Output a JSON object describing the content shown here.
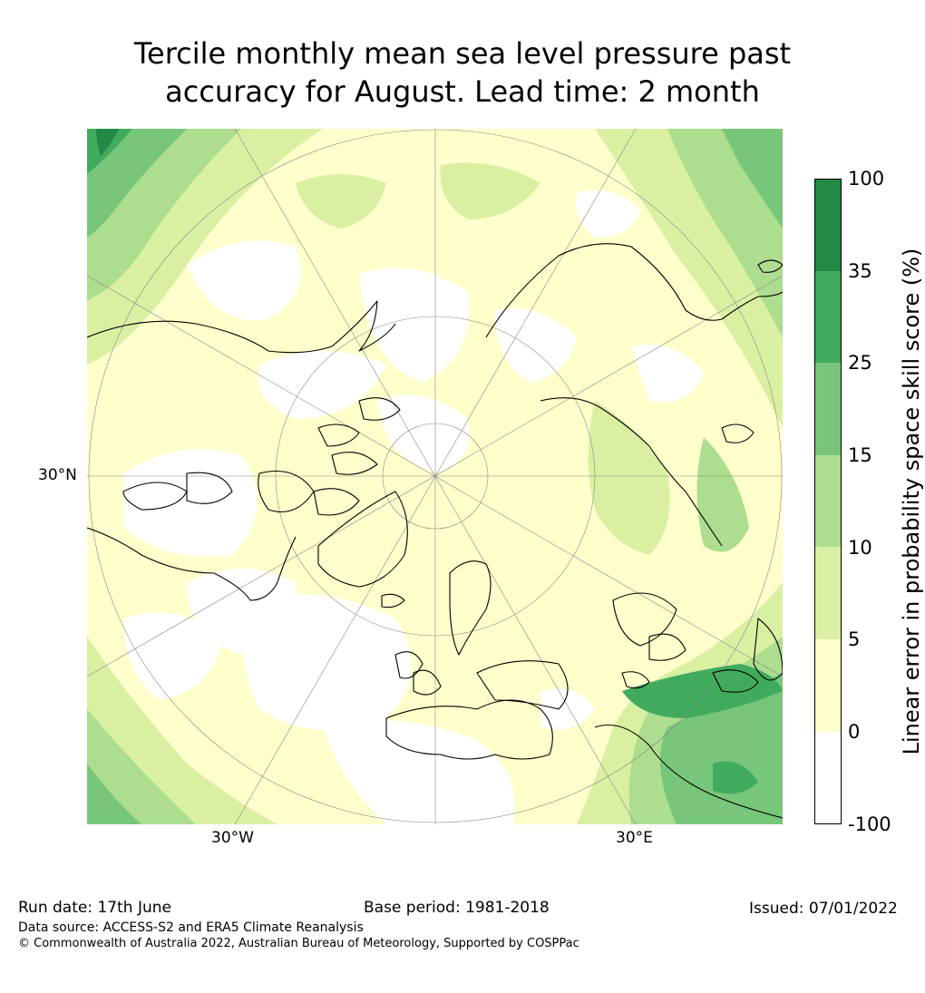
{
  "title": {
    "line1": "Tercile monthly mean sea level pressure past",
    "line2": "accuracy for August. Lead time: 2 month"
  },
  "map": {
    "projection": "north-polar-stereographic",
    "lat_label": "30°N",
    "lon_labels": [
      "30°W",
      "30°E"
    ],
    "land_outline_color": "#000000",
    "graticule_color": "#888888"
  },
  "colorbar": {
    "title": "Linear error in probability space skill score (%)",
    "ticks": [
      "100",
      "35",
      "25",
      "15",
      "10",
      "5",
      "0",
      "-100"
    ],
    "bins": [
      {
        "range": "35 to 100",
        "color": "#238a45"
      },
      {
        "range": "25 to 35",
        "color": "#41ab5d"
      },
      {
        "range": "15 to 25",
        "color": "#78c679"
      },
      {
        "range": "10 to 15",
        "color": "#addd8e"
      },
      {
        "range": "5 to 10",
        "color": "#d9f0a3"
      },
      {
        "range": "0 to 5",
        "color": "#ffffcc"
      },
      {
        "range": "-100 to 0",
        "color": "#ffffff"
      }
    ]
  },
  "footer": {
    "run_date": "Run date: 17th June",
    "base_period": "Base period: 1981-2018",
    "issued": "Issued: 07/01/2022",
    "data_source": "Data source: ACCESS-S2 and ERA5 Climate Reanalysis",
    "copyright": "© Commonwealth of Australia 2022, Australian Bureau of Meteorology, Supported by COSPPac"
  }
}
